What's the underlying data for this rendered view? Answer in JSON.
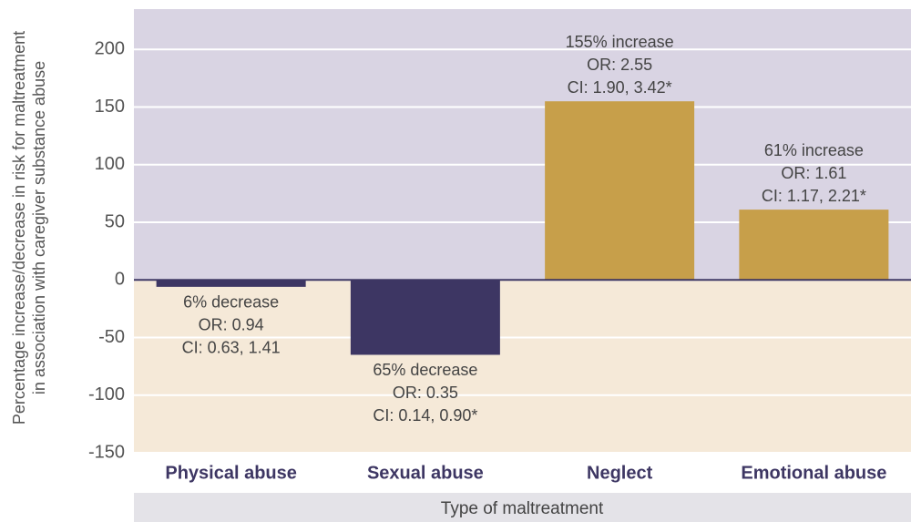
{
  "chart_data": {
    "type": "bar",
    "y_axis_title": [
      "Percentage increase/decrease in risk for maltreatment",
      "in association with caregiver substance abuse"
    ],
    "x_axis_title": "Type of maltreatment",
    "categories": [
      "Physical abuse",
      "Sexual abuse",
      "Neglect",
      "Emotional abuse"
    ],
    "values": [
      -6,
      -65,
      155,
      61
    ],
    "value_labels": [
      "6% decrease",
      "65% decrease",
      "155% increase",
      "61% increase"
    ],
    "odds_ratios": [
      "OR: 0.94",
      "OR: 0.35",
      "OR: 2.55",
      "OR: 1.61"
    ],
    "confidence_intervals": [
      "CI: 0.63, 1.41",
      "CI: 0.14, 0.90*",
      "CI: 1.90, 3.42*",
      "CI: 1.17, 2.21*"
    ],
    "colors": [
      "#3d3663",
      "#3d3663",
      "#c79f4a",
      "#c79f4a"
    ],
    "ylim": [
      -150,
      235
    ],
    "yticks": [
      -150,
      -100,
      -50,
      0,
      50,
      100,
      150,
      200
    ],
    "grid": true
  }
}
